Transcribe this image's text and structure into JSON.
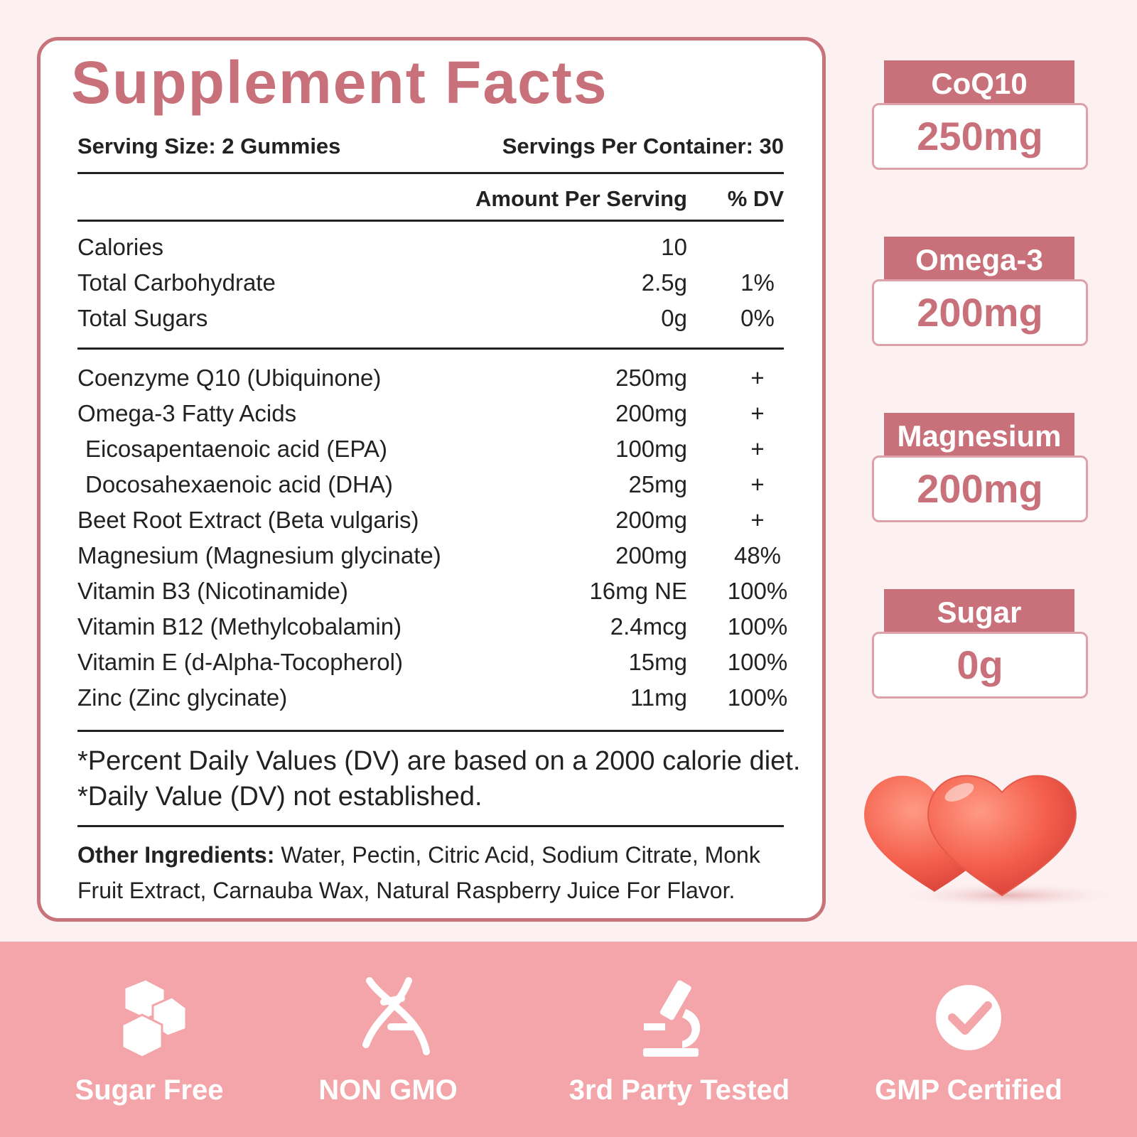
{
  "facts": {
    "title": "Supplement Facts",
    "serving_size": "Serving Size: 2 Gummies",
    "servings_per_container": "Servings Per Container: 30",
    "header": {
      "amount": "Amount Per Serving",
      "dv": "% DV"
    },
    "basic_rows": [
      {
        "name": "Calories",
        "amount": "10"
      },
      {
        "name": "Total Carbohydrate",
        "amount": "2.5g",
        "dv": "1%"
      },
      {
        "name": "Total Sugars",
        "amount": "0g",
        "dv": "0%"
      }
    ],
    "nutrient_rows": [
      {
        "name": "Coenzyme Q10 (Ubiquinone)",
        "amount": "250mg",
        "dv": "+"
      },
      {
        "name": "Omega-3 Fatty Acids",
        "amount": "200mg",
        "dv": "+"
      },
      {
        "name": "Eicosapentaenoic acid (EPA)",
        "amount": "100mg",
        "dv": "+",
        "indent": true
      },
      {
        "name": "Docosahexaenoic acid (DHA)",
        "amount": "25mg",
        "dv": "+",
        "indent": true
      },
      {
        "name": "Beet Root Extract (Beta vulgaris)",
        "amount": "200mg",
        "dv": "+"
      },
      {
        "name": "Magnesium (Magnesium glycinate)",
        "amount": "200mg",
        "dv": "48%"
      },
      {
        "name": "Vitamin B3 (Nicotinamide)",
        "amount": "16mg NE",
        "dv": "100%"
      },
      {
        "name": "Vitamin B12 (Methylcobalamin)",
        "amount": "2.4mcg",
        "dv": "100%"
      },
      {
        "name": "Vitamin E (d-Alpha-Tocopherol)",
        "amount": "15mg",
        "dv": "100%"
      },
      {
        "name": "Zinc (Zinc glycinate)",
        "amount": "11mg",
        "dv": "100%"
      }
    ],
    "footnotes": [
      "*Percent Daily Values (DV) are based on a 2000 calorie diet.",
      "*Daily Value (DV) not established."
    ],
    "other_ingredients": {
      "label": "Other Ingredients:",
      "text": "Water, Pectin, Citric Acid, Sodium Citrate, Monk Fruit Extract, Carnauba Wax, Natural Raspberry Juice For Flavor."
    }
  },
  "badges": [
    {
      "label": "CoQ10",
      "value": "250mg"
    },
    {
      "label": "Omega-3",
      "value": "200mg"
    },
    {
      "label": "Magnesium",
      "value": "200mg"
    },
    {
      "label": "Sugar",
      "value": "0g"
    }
  ],
  "features": [
    "Sugar Free",
    "NON GMO",
    "3rd Party Tested",
    "GMP Certified"
  ]
}
